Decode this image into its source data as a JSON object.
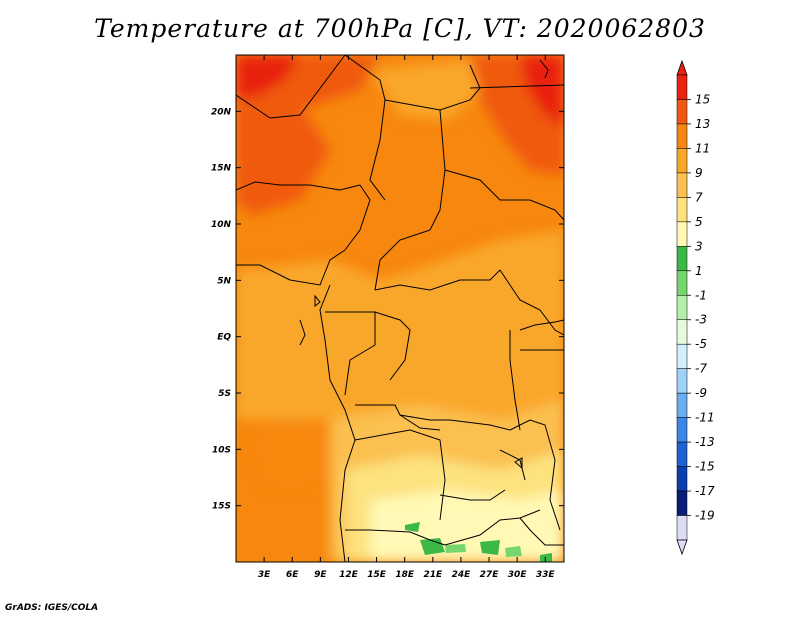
{
  "title": "Temperature at 700hPa [C], VT: 2020062803",
  "credit": "GrADS: IGES/COLA",
  "map": {
    "region": "Central Africa",
    "lon_range": [
      0,
      35
    ],
    "lat_range": [
      -20,
      25
    ],
    "lon_ticks": [
      {
        "value": 3,
        "label": "3E"
      },
      {
        "value": 6,
        "label": "6E"
      },
      {
        "value": 9,
        "label": "9E"
      },
      {
        "value": 12,
        "label": "12E"
      },
      {
        "value": 15,
        "label": "15E"
      },
      {
        "value": 18,
        "label": "18E"
      },
      {
        "value": 21,
        "label": "21E"
      },
      {
        "value": 24,
        "label": "24E"
      },
      {
        "value": 27,
        "label": "27E"
      },
      {
        "value": 30,
        "label": "30E"
      },
      {
        "value": 33,
        "label": "33E"
      }
    ],
    "lat_ticks": [
      {
        "value": 20,
        "label": "20N"
      },
      {
        "value": 15,
        "label": "15N"
      },
      {
        "value": 10,
        "label": "10N"
      },
      {
        "value": 5,
        "label": "5N"
      },
      {
        "value": 0,
        "label": "EQ"
      },
      {
        "value": -5,
        "label": "5S"
      },
      {
        "value": -10,
        "label": "10S"
      },
      {
        "value": -15,
        "label": "15S"
      }
    ]
  },
  "colorbar": {
    "labels": [
      "15",
      "13",
      "11",
      "9",
      "7",
      "5",
      "3",
      "1",
      "-1",
      "-3",
      "-5",
      "-7",
      "-9",
      "-11",
      "-13",
      "-15",
      "-17",
      "-19"
    ],
    "colors": [
      "#e8230f",
      "#f05a10",
      "#f7870e",
      "#f9a729",
      "#fbc04f",
      "#fde27e",
      "#fff9b5",
      "#3cb846",
      "#76d66e",
      "#b4f0ab",
      "#e6fae0",
      "#d2f1fb",
      "#9fd2f7",
      "#6aaef0",
      "#3c86e6",
      "#1e62d2",
      "#0b3fad",
      "#061e78",
      "#dcdcf5"
    ]
  }
}
